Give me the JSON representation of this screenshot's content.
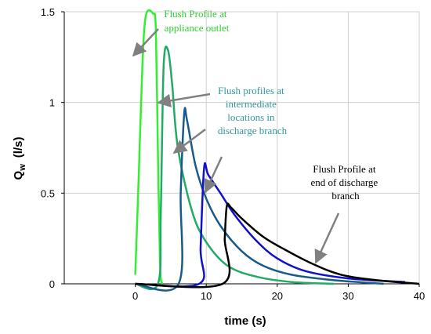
{
  "chart_data": {
    "type": "line",
    "xlabel": "time (s)",
    "ylabel": "Q",
    "ylabel_subscript": "w",
    "ylabel_unit": "(l/s)",
    "xlim": [
      -10,
      40
    ],
    "ylim": [
      0,
      1.5
    ],
    "xticks": [
      0,
      10,
      20,
      30,
      40
    ],
    "yticks": [
      0,
      0.5,
      1,
      1.5
    ],
    "ytick_labels": [
      "0",
      "0.5",
      "1",
      "1.5"
    ],
    "grid": true,
    "series": [
      {
        "color": "#33ee33",
        "points": [
          [
            0,
            0.05
          ],
          [
            0.5,
            0.6
          ],
          [
            1,
            1.2
          ],
          [
            1.5,
            1.48
          ],
          [
            2.5,
            1.49
          ],
          [
            2.9,
            1.4
          ],
          [
            3.2,
            0.7
          ],
          [
            3.5,
            0.1
          ],
          [
            3.8,
            0
          ]
        ]
      },
      {
        "color": "#22aa66",
        "points": [
          [
            0,
            0
          ],
          [
            3.2,
            0
          ],
          [
            3.6,
            0.4
          ],
          [
            4,
            1.2
          ],
          [
            4.6,
            1.29
          ],
          [
            5.2,
            1.1
          ],
          [
            6,
            0.75
          ],
          [
            8,
            0.4
          ],
          [
            10,
            0.23
          ],
          [
            13,
            0.1
          ],
          [
            17,
            0.04
          ],
          [
            22,
            0.01
          ],
          [
            28,
            0
          ]
        ]
      },
      {
        "color": "#1a5a8a",
        "points": [
          [
            0,
            0
          ],
          [
            6.1,
            0
          ],
          [
            6.4,
            0.5
          ],
          [
            6.9,
            0.94
          ],
          [
            7.3,
            0.9
          ],
          [
            8.5,
            0.65
          ],
          [
            10,
            0.47
          ],
          [
            12,
            0.32
          ],
          [
            15,
            0.18
          ],
          [
            18,
            0.1
          ],
          [
            22,
            0.05
          ],
          [
            28,
            0.02
          ],
          [
            35,
            0
          ]
        ]
      },
      {
        "color": "#1111cc",
        "points": [
          [
            0,
            0
          ],
          [
            9,
            0
          ],
          [
            9.2,
            0.2
          ],
          [
            9.7,
            0.64
          ],
          [
            10.3,
            0.6
          ],
          [
            12,
            0.5
          ],
          [
            14,
            0.38
          ],
          [
            17,
            0.24
          ],
          [
            20,
            0.14
          ],
          [
            24,
            0.07
          ],
          [
            30,
            0.03
          ],
          [
            38,
            0.01
          ]
        ]
      },
      {
        "color": "#000000",
        "points": [
          [
            0,
            0
          ],
          [
            12.3,
            0
          ],
          [
            12.6,
            0.25
          ],
          [
            12.9,
            0.43
          ],
          [
            13.5,
            0.42
          ],
          [
            15,
            0.36
          ],
          [
            18,
            0.26
          ],
          [
            21,
            0.19
          ],
          [
            25,
            0.11
          ],
          [
            29,
            0.05
          ],
          [
            34,
            0.02
          ],
          [
            40,
            0
          ]
        ]
      }
    ],
    "annotations": [
      {
        "lines": [
          "Flush Profile at",
          "appliance outlet"
        ],
        "color": "#33cc33"
      },
      {
        "lines": [
          "Flush profiles at",
          "intermediate",
          "locations in",
          "discharge branch"
        ],
        "color": "#339999"
      },
      {
        "lines": [
          "Flush Profile at",
          "end of discharge",
          "branch"
        ],
        "color": "#000000"
      }
    ]
  }
}
